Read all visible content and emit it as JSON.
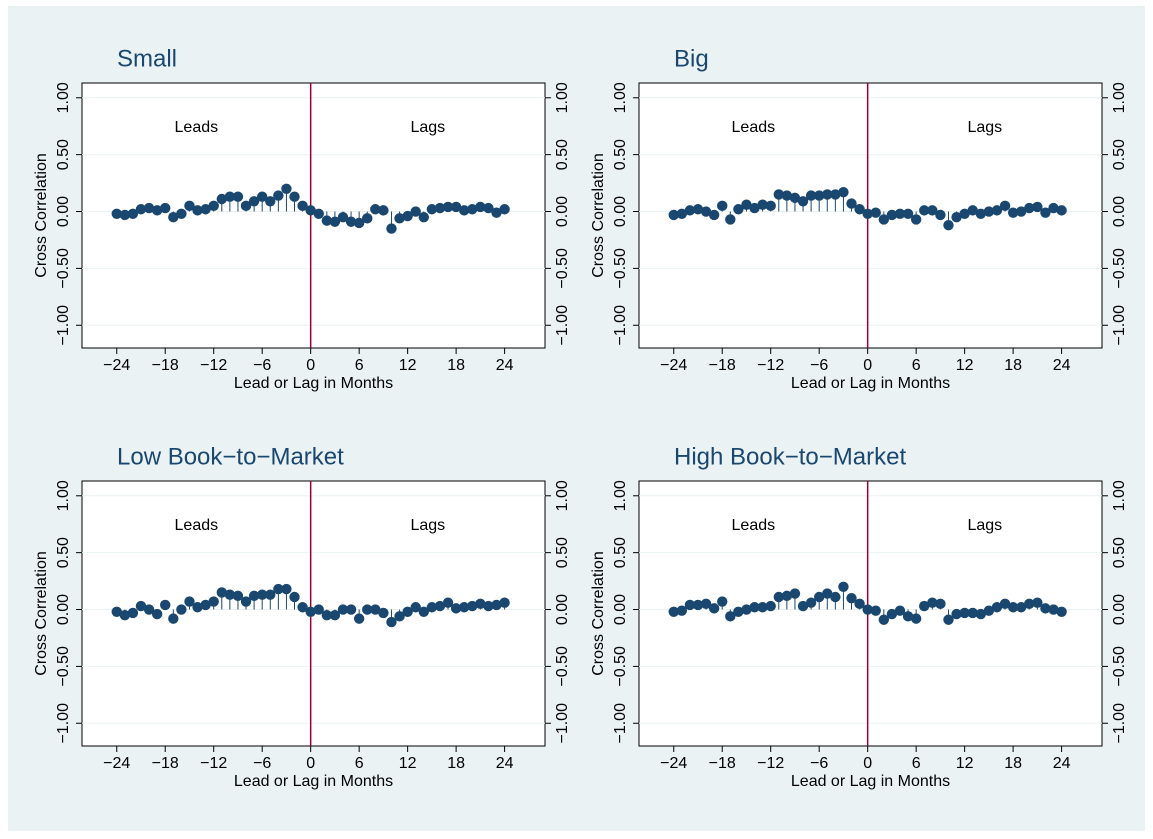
{
  "chart_data": [
    {
      "type": "stem",
      "title": "Small",
      "x_label": "Lead or Lag in Months",
      "y_label": "Cross Correlation",
      "annotations": [
        "Leads",
        "Lags"
      ],
      "reference_line": 0,
      "reference_color": "#990033",
      "color": "#1a476f",
      "x": [
        -24,
        -23,
        -22,
        -21,
        -20,
        -19,
        -18,
        -17,
        -16,
        -15,
        -14,
        -13,
        -12,
        -11,
        -10,
        -9,
        -8,
        -7,
        -6,
        -5,
        -4,
        -3,
        -2,
        -1,
        0,
        1,
        2,
        3,
        4,
        5,
        6,
        7,
        8,
        9,
        10,
        11,
        12,
        13,
        14,
        15,
        16,
        17,
        18,
        19,
        20,
        21,
        22,
        23,
        24
      ],
      "values": [
        -0.02,
        -0.03,
        -0.02,
        0.02,
        0.03,
        0.01,
        0.03,
        -0.05,
        -0.02,
        0.05,
        0.01,
        0.02,
        0.05,
        0.11,
        0.13,
        0.13,
        0.05,
        0.09,
        0.13,
        0.09,
        0.14,
        0.2,
        0.13,
        0.05,
        0.01,
        -0.02,
        -0.08,
        -0.09,
        -0.05,
        -0.09,
        -0.1,
        -0.06,
        0.02,
        0.01,
        -0.15,
        -0.06,
        -0.04,
        0.0,
        -0.05,
        0.02,
        0.03,
        0.04,
        0.04,
        0.01,
        0.02,
        0.04,
        0.03,
        -0.01,
        0.02
      ],
      "xlim": [
        -28.3,
        29
      ],
      "ylim": [
        -1.2,
        1.13
      ],
      "xticks": [
        {
          "value": -24,
          "label": "−24"
        },
        {
          "value": -18,
          "label": "−18"
        },
        {
          "value": -12,
          "label": "−12"
        },
        {
          "value": -6,
          "label": "−6"
        },
        0,
        6,
        12,
        18,
        24
      ],
      "yticks": [
        {
          "value": -1,
          "label": "−1.00"
        },
        {
          "value": -0.5,
          "label": "−0.50"
        },
        {
          "value": 0,
          "label": "0.00"
        },
        {
          "value": 0.5,
          "label": "0.50"
        },
        {
          "value": 1,
          "label": "1.00"
        }
      ],
      "grid": true
    },
    {
      "type": "stem",
      "title": "Big",
      "x_label": "Lead or Lag in Months",
      "y_label": "Cross Correlation",
      "annotations": [
        "Leads",
        "Lags"
      ],
      "reference_line": 0,
      "reference_color": "#990033",
      "color": "#1a476f",
      "x": [
        -24,
        -23,
        -22,
        -21,
        -20,
        -19,
        -18,
        -17,
        -16,
        -15,
        -14,
        -13,
        -12,
        -11,
        -10,
        -9,
        -8,
        -7,
        -6,
        -5,
        -4,
        -3,
        -2,
        -1,
        0,
        1,
        2,
        3,
        4,
        5,
        6,
        7,
        8,
        9,
        10,
        11,
        12,
        13,
        14,
        15,
        16,
        17,
        18,
        19,
        20,
        21,
        22,
        23,
        24
      ],
      "values": [
        -0.03,
        -0.02,
        0.01,
        0.02,
        0.0,
        -0.03,
        0.05,
        -0.07,
        0.02,
        0.06,
        0.03,
        0.06,
        0.05,
        0.15,
        0.14,
        0.12,
        0.09,
        0.14,
        0.14,
        0.15,
        0.15,
        0.17,
        0.07,
        0.02,
        -0.02,
        -0.01,
        -0.07,
        -0.03,
        -0.02,
        -0.02,
        -0.07,
        0.01,
        0.01,
        -0.03,
        -0.12,
        -0.05,
        -0.02,
        0.01,
        -0.02,
        0.0,
        0.01,
        0.05,
        -0.01,
        0.0,
        0.03,
        0.04,
        -0.01,
        0.03,
        0.01
      ],
      "xlim": [
        -28.3,
        29
      ],
      "ylim": [
        -1.2,
        1.13
      ],
      "xticks": [
        {
          "value": -24,
          "label": "−24"
        },
        {
          "value": -18,
          "label": "−18"
        },
        {
          "value": -12,
          "label": "−12"
        },
        {
          "value": -6,
          "label": "−6"
        },
        0,
        6,
        12,
        18,
        24
      ],
      "yticks": [
        {
          "value": -1,
          "label": "−1.00"
        },
        {
          "value": -0.5,
          "label": "−0.50"
        },
        {
          "value": 0,
          "label": "0.00"
        },
        {
          "value": 0.5,
          "label": "0.50"
        },
        {
          "value": 1,
          "label": "1.00"
        }
      ],
      "grid": true
    },
    {
      "type": "stem",
      "title": "Low Book−to−Market",
      "x_label": "Lead or Lag in Months",
      "y_label": "Cross Correlation",
      "annotations": [
        "Leads",
        "Lags"
      ],
      "reference_line": 0,
      "reference_color": "#990033",
      "color": "#1a476f",
      "x": [
        -24,
        -23,
        -22,
        -21,
        -20,
        -19,
        -18,
        -17,
        -16,
        -15,
        -14,
        -13,
        -12,
        -11,
        -10,
        -9,
        -8,
        -7,
        -6,
        -5,
        -4,
        -3,
        -2,
        -1,
        0,
        1,
        2,
        3,
        4,
        5,
        6,
        7,
        8,
        9,
        10,
        11,
        12,
        13,
        14,
        15,
        16,
        17,
        18,
        19,
        20,
        21,
        22,
        23,
        24
      ],
      "values": [
        -0.02,
        -0.05,
        -0.03,
        0.03,
        0.0,
        -0.04,
        0.04,
        -0.08,
        0.0,
        0.07,
        0.02,
        0.04,
        0.07,
        0.15,
        0.13,
        0.12,
        0.07,
        0.12,
        0.13,
        0.13,
        0.18,
        0.18,
        0.11,
        0.02,
        -0.02,
        0.0,
        -0.05,
        -0.05,
        0.0,
        0.0,
        -0.08,
        0.0,
        0.0,
        -0.03,
        -0.11,
        -0.06,
        -0.02,
        0.02,
        -0.02,
        0.02,
        0.03,
        0.06,
        0.01,
        0.02,
        0.03,
        0.05,
        0.03,
        0.04,
        0.06
      ],
      "xlim": [
        -28.3,
        29
      ],
      "ylim": [
        -1.2,
        1.13
      ],
      "xticks": [
        {
          "value": -24,
          "label": "−24"
        },
        {
          "value": -18,
          "label": "−18"
        },
        {
          "value": -12,
          "label": "−12"
        },
        {
          "value": -6,
          "label": "−6"
        },
        0,
        6,
        12,
        18,
        24
      ],
      "yticks": [
        {
          "value": -1,
          "label": "−1.00"
        },
        {
          "value": -0.5,
          "label": "−0.50"
        },
        {
          "value": 0,
          "label": "0.00"
        },
        {
          "value": 0.5,
          "label": "0.50"
        },
        {
          "value": 1,
          "label": "1.00"
        }
      ],
      "grid": true
    },
    {
      "type": "stem",
      "title": "High Book−to−Market",
      "x_label": "Lead or Lag in Months",
      "y_label": "Cross Correlation",
      "annotations": [
        "Leads",
        "Lags"
      ],
      "reference_line": 0,
      "reference_color": "#990033",
      "color": "#1a476f",
      "x": [
        -24,
        -23,
        -22,
        -21,
        -20,
        -19,
        -18,
        -17,
        -16,
        -15,
        -14,
        -13,
        -12,
        -11,
        -10,
        -9,
        -8,
        -7,
        -6,
        -5,
        -4,
        -3,
        -2,
        -1,
        0,
        1,
        2,
        3,
        4,
        5,
        6,
        7,
        8,
        9,
        10,
        11,
        12,
        13,
        14,
        15,
        16,
        17,
        18,
        19,
        20,
        21,
        22,
        23,
        24
      ],
      "values": [
        -0.02,
        -0.01,
        0.04,
        0.04,
        0.05,
        0.01,
        0.07,
        -0.06,
        -0.02,
        0.0,
        0.02,
        0.02,
        0.03,
        0.11,
        0.12,
        0.14,
        0.03,
        0.06,
        0.11,
        0.14,
        0.11,
        0.2,
        0.1,
        0.05,
        0.0,
        -0.01,
        -0.09,
        -0.04,
        -0.01,
        -0.06,
        -0.08,
        0.03,
        0.06,
        0.05,
        -0.09,
        -0.04,
        -0.03,
        -0.03,
        -0.04,
        -0.01,
        0.02,
        0.05,
        0.02,
        0.02,
        0.05,
        0.06,
        0.01,
        0.0,
        -0.02
      ],
      "xlim": [
        -28.3,
        29
      ],
      "ylim": [
        -1.2,
        1.13
      ],
      "xticks": [
        {
          "value": -24,
          "label": "−24"
        },
        {
          "value": -18,
          "label": "−18"
        },
        {
          "value": -12,
          "label": "−12"
        },
        {
          "value": -6,
          "label": "−6"
        },
        0,
        6,
        12,
        18,
        24
      ],
      "yticks": [
        {
          "value": -1,
          "label": "−1.00"
        },
        {
          "value": -0.5,
          "label": "−0.50"
        },
        {
          "value": 0,
          "label": "0.00"
        },
        {
          "value": 0.5,
          "label": "0.50"
        },
        {
          "value": 1,
          "label": "1.00"
        }
      ],
      "grid": true
    }
  ]
}
